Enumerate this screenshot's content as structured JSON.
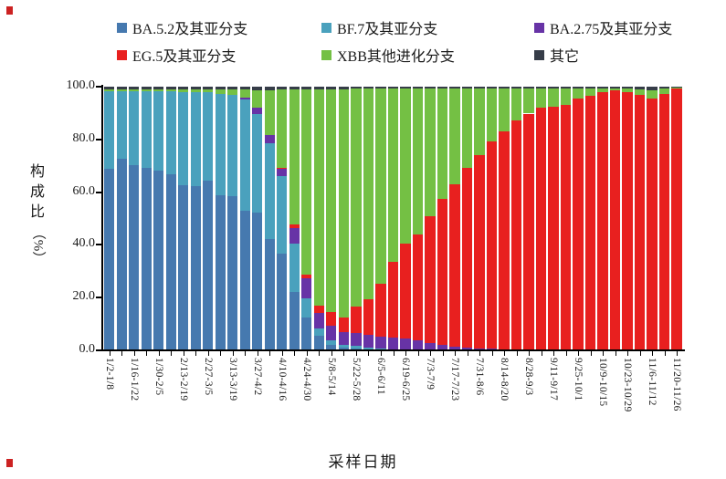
{
  "page": {
    "ylabel_chars": "构成比",
    "ylabel_unit": "（%）",
    "xlabel": "采样日期"
  },
  "chart_data": {
    "type": "bar",
    "variant": "stacked-100-percent-column",
    "title": "",
    "xlabel": "采样日期",
    "ylabel": "构成比（%）",
    "ylim": [
      0,
      100
    ],
    "yticks": [
      "100.0",
      "80.0",
      "60.0",
      "40.0",
      "20.0",
      "0.0"
    ],
    "grid": false,
    "legend_position": "top",
    "n_bars": 47,
    "tick_label_rule": "weekly bars; a tick mark under every bar; a date-range label under every other bar starting with the first",
    "tick_labels": [
      "1/2-1/8",
      "1/16-1/22",
      "1/30-2/5",
      "2/13-2/19",
      "2/27-3/5",
      "3/13-3/19",
      "3/27-4/2",
      "4/10-4/16",
      "4/24-4/30",
      "5/8-5/14",
      "5/22-5/28",
      "6/5-6/11",
      "6/19-6/25",
      "7/3-7/9",
      "7/17-7/23",
      "7/31-8/6",
      "8/14-8/20",
      "8/28-9/3",
      "9/11-9/17",
      "9/25-10/1",
      "10/9-10/15",
      "10/23-10/29",
      "11/6-11/12",
      "11/20-11/26"
    ],
    "series": [
      {
        "name": "BA.5.2及其亚分支",
        "color": "#4679af",
        "values": [
          68.9,
          72.5,
          70.4,
          69.2,
          68.3,
          66.8,
          62.5,
          62.2,
          64.2,
          58.7,
          58.5,
          53.1,
          52.4,
          42.3,
          36.6,
          22.1,
          12.3,
          5.4,
          2.0,
          1.2,
          0.8,
          0.5,
          0.4,
          0.3,
          0.2,
          0.2,
          0.1,
          0.1,
          0,
          0,
          0,
          0,
          0,
          0,
          0,
          0,
          0,
          0,
          0,
          0,
          0,
          0,
          0,
          0,
          0,
          0,
          0
        ]
      },
      {
        "name": "BF.7及其亚分支",
        "color": "#4aa1bd",
        "values": [
          29.4,
          25.8,
          27.9,
          29.1,
          30.0,
          31.5,
          35.6,
          35.9,
          33.6,
          38.6,
          38.3,
          41.9,
          37.2,
          36.4,
          29.4,
          18.5,
          7.5,
          2.9,
          1.7,
          1.0,
          0.8,
          0.5,
          0.3,
          0.2,
          0.2,
          0.1,
          0.1,
          0,
          0,
          0,
          0,
          0,
          0,
          0,
          0,
          0,
          0,
          0,
          0,
          0,
          0,
          0,
          0,
          0,
          0,
          0,
          0
        ]
      },
      {
        "name": "BA.2.75及其亚分支",
        "color": "#6733a6",
        "values": [
          0,
          0,
          0,
          0,
          0,
          0,
          0,
          0,
          0,
          0,
          0,
          0.8,
          2.3,
          2.8,
          3.0,
          5.8,
          7.5,
          5.8,
          5.8,
          4.8,
          5.0,
          5.0,
          4.5,
          4.2,
          4.0,
          3.5,
          2.6,
          2.0,
          1.5,
          1.2,
          0.8,
          0.6,
          0.5,
          0.3,
          0.2,
          0.2,
          0,
          0,
          0,
          0,
          0,
          0,
          0,
          0,
          0,
          0,
          0
        ]
      },
      {
        "name": "EG.5及其亚分支",
        "color": "#e8201f",
        "values": [
          0,
          0,
          0,
          0,
          0,
          0,
          0,
          0,
          0,
          0,
          0,
          0,
          0,
          0,
          0.3,
          1.2,
          1.5,
          2.9,
          5.2,
          5.5,
          10.0,
          13.5,
          20.0,
          29.0,
          36.2,
          40.2,
          48.2,
          55.2,
          61.6,
          67.9,
          73.2,
          78.6,
          82.4,
          86.9,
          89.6,
          92.0,
          92.3,
          93.2,
          95.4,
          96.7,
          97.8,
          98.6,
          98.1,
          96.9,
          95.5,
          97.2,
          99.2
        ]
      },
      {
        "name": "XBB其他进化分支",
        "color": "#74c044",
        "values": [
          0.5,
          0.5,
          0.5,
          0.5,
          0.5,
          0.5,
          0.7,
          0.7,
          1.0,
          1.5,
          2.0,
          3.0,
          6.6,
          17.0,
          29.5,
          51.4,
          70.2,
          82.0,
          84.3,
          86.5,
          82.6,
          79.7,
          74.0,
          65.5,
          58.6,
          55.2,
          48.2,
          41.9,
          36.1,
          30.1,
          25.2,
          20.0,
          16.3,
          12.0,
          9.4,
          7.0,
          6.9,
          6.0,
          3.8,
          2.5,
          1.6,
          0.8,
          1.3,
          2.0,
          3.0,
          2.2,
          0.5
        ]
      },
      {
        "name": "其它",
        "color": "#363d48",
        "values": [
          1.2,
          1.2,
          1.2,
          1.2,
          1.2,
          1.2,
          1.2,
          1.2,
          1.2,
          1.2,
          1.2,
          1.2,
          1.5,
          1.5,
          1.2,
          1.0,
          1.0,
          1.0,
          1.0,
          1.0,
          0.8,
          0.8,
          0.8,
          0.8,
          0.8,
          0.8,
          0.8,
          0.8,
          0.8,
          0.8,
          0.8,
          0.8,
          0.8,
          0.8,
          0.8,
          0.8,
          0.8,
          0.8,
          0.8,
          0.8,
          0.6,
          0.6,
          0.6,
          1.1,
          1.5,
          0.6,
          0.3
        ]
      }
    ]
  }
}
